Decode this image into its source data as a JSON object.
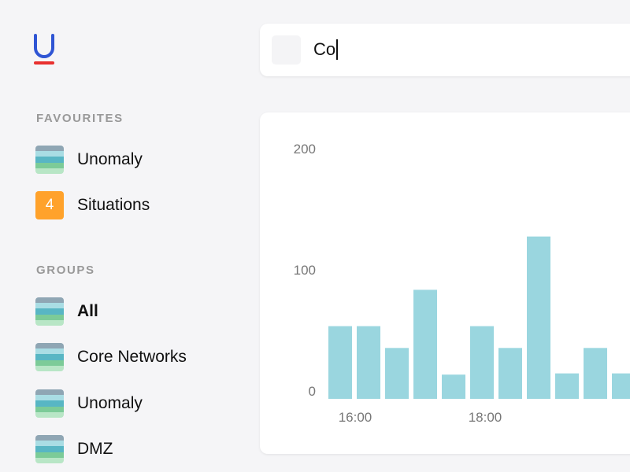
{
  "logo": {
    "colors": {
      "letter": "#2f55d4",
      "underline": "#e8302e"
    }
  },
  "search": {
    "value": "Co"
  },
  "sidebar": {
    "favourites_title": "FAVOURITES",
    "favourites": [
      {
        "label": "Unomaly",
        "icon": "group-stripes-icon"
      },
      {
        "label": "Situations",
        "badge": "4",
        "badge_color": "#ffa22b"
      }
    ],
    "groups_title": "GROUPS",
    "groups": [
      {
        "label": "All",
        "bold": true
      },
      {
        "label": "Core Networks"
      },
      {
        "label": "Unomaly"
      },
      {
        "label": "DMZ"
      }
    ]
  },
  "chart_data": {
    "type": "bar",
    "categories": [
      "",
      "16:00",
      "",
      "",
      "",
      "",
      "18:00",
      "",
      "",
      "",
      ""
    ],
    "x_tick_labels": [
      "16:00",
      "18:00"
    ],
    "values": [
      60,
      60,
      42,
      90,
      20,
      60,
      42,
      134,
      21,
      42,
      21
    ],
    "y_tick_labels": [
      "0",
      "100",
      "200"
    ],
    "ylim": [
      0,
      200
    ],
    "bar_color": "#9ad6df",
    "grid": false
  }
}
